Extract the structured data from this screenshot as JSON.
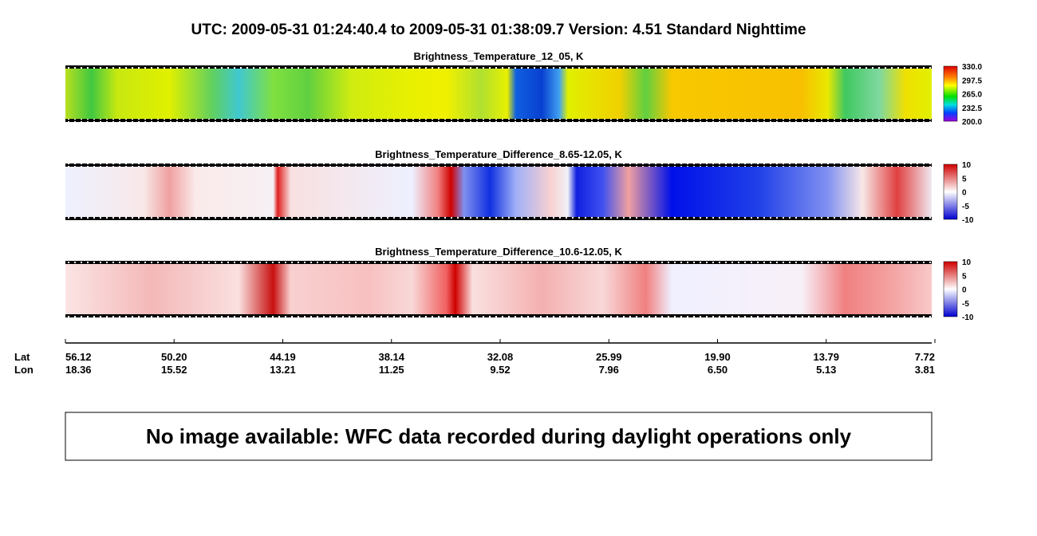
{
  "header": {
    "title": "UTC:  2009-05-31   01:24:40.4  to  2009-05-31   01:38:09.7    Version: 4.51  Standard Nighttime"
  },
  "panels": [
    {
      "title": "Brightness_Temperature_12_05, K",
      "colorbar": [
        "330.0",
        "297.5",
        "265.0",
        "232.5",
        "200.0"
      ]
    },
    {
      "title": "Brightness_Temperature_Difference_8.65-12.05, K",
      "colorbar": [
        "10",
        "5",
        "0",
        "-5",
        "-10"
      ]
    },
    {
      "title": "Brightness_Temperature_Difference_10.6-12.05, K",
      "colorbar": [
        "10",
        "5",
        "0",
        "-5",
        "-10"
      ]
    }
  ],
  "axis": {
    "lat_label": "Lat",
    "lon_label": "Lon",
    "lat": [
      "56.12",
      "50.20",
      "44.19",
      "38.14",
      "32.08",
      "25.99",
      "19.90",
      "13.79",
      "7.72"
    ],
    "lon": [
      "18.36",
      "15.52",
      "13.21",
      "11.25",
      "9.52",
      "7.96",
      "6.50",
      "5.13",
      "3.81"
    ]
  },
  "message": "No image available: WFC data recorded during daylight operations only"
}
